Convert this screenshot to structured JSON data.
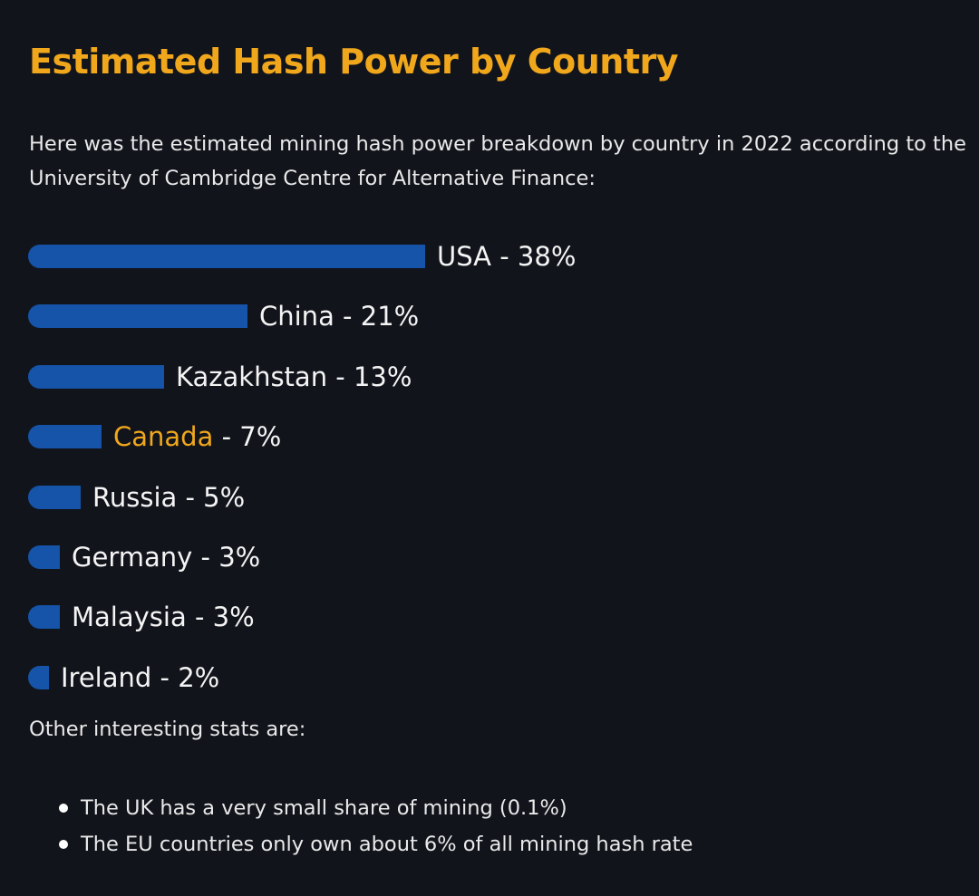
{
  "heading": "Estimated Hash Power by Country",
  "intro": "Here was the estimated mining hash power breakdown by country in 2022 according to the University of Cambridge Centre for Alternative Finance:",
  "colors": {
    "accent": "#f0a71c",
    "bar": "#1554a8",
    "background": "#12141c",
    "text": "#f2f2f2"
  },
  "chart_data": {
    "type": "bar",
    "orientation": "horizontal",
    "title": "",
    "categories": [
      "USA",
      "China",
      "Kazakhstan",
      "Canada",
      "Russia",
      "Germany",
      "Malaysia",
      "Ireland"
    ],
    "values": [
      38,
      21,
      13,
      7,
      5,
      3,
      3,
      2
    ],
    "unit": "%",
    "labels": [
      "USA - 38%",
      "China - 21%",
      "Kazakhstan - 13%",
      "Canada - 7%",
      "Russia - 5%",
      "Germany - 3%",
      "Malaysia - 3%",
      "Ireland - 2%"
    ],
    "highlight": "Canada",
    "xlim": [
      0,
      38
    ],
    "grid": false,
    "legend": "none"
  },
  "other_heading": "Other interesting stats are:",
  "stats": [
    "The UK has a very small share of mining (0.1%)",
    "The EU countries only own about 6% of all mining hash rate"
  ]
}
